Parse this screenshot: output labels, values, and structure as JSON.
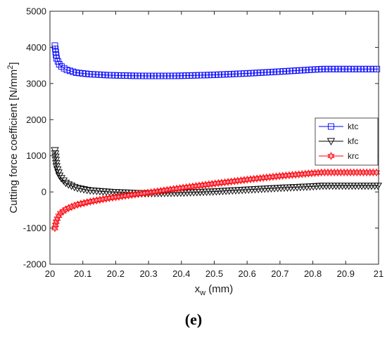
{
  "chart_data": {
    "type": "line",
    "title": "",
    "xlabel": "x",
    "xlabel_sub": "w",
    "xlabel_unit": " (mm)",
    "ylabel": "Cutting force coefficient [N/mm",
    "ylabel_sup": "2",
    "ylabel_close": "]",
    "xlim": [
      20,
      21
    ],
    "ylim": [
      -2000,
      5000
    ],
    "xticks": [
      20,
      20.1,
      20.2,
      20.3,
      20.4,
      20.5,
      20.6,
      20.7,
      20.8,
      20.9,
      21
    ],
    "xtick_labels": [
      "20",
      "20.1",
      "20.2",
      "20.3",
      "20.4",
      "20.5",
      "20.6",
      "20.7",
      "20.8",
      "20.9",
      "21"
    ],
    "yticks": [
      -2000,
      -1000,
      0,
      1000,
      2000,
      3000,
      4000,
      5000
    ],
    "ytick_labels": [
      "-2000",
      "-1000",
      "0",
      "1000",
      "2000",
      "3000",
      "4000",
      "5000"
    ],
    "grid": false,
    "legend_position": "right",
    "series": [
      {
        "name": "ktc",
        "color": "#0000ff",
        "marker": "square",
        "x": [
          20.015,
          20.02,
          20.03,
          20.05,
          20.08,
          20.12,
          20.18,
          20.25,
          20.3,
          20.35,
          20.4,
          20.5,
          20.6,
          20.7,
          20.8,
          20.83,
          20.9,
          21.0
        ],
        "y": [
          4050,
          3700,
          3500,
          3380,
          3300,
          3260,
          3230,
          3215,
          3210,
          3210,
          3215,
          3240,
          3280,
          3330,
          3385,
          3400,
          3400,
          3400
        ]
      },
      {
        "name": "kfc",
        "color": "#000000",
        "marker": "triangle-down",
        "x": [
          20.015,
          20.02,
          20.03,
          20.05,
          20.08,
          20.12,
          20.18,
          20.25,
          20.3,
          20.4,
          20.5,
          20.6,
          20.7,
          20.8,
          20.83,
          20.9,
          21.0
        ],
        "y": [
          1150,
          700,
          420,
          230,
          110,
          40,
          0,
          -30,
          -40,
          -25,
          10,
          60,
          110,
          150,
          170,
          170,
          170
        ]
      },
      {
        "name": "krc",
        "color": "#ff0000",
        "marker": "hexagram",
        "x": [
          20.015,
          20.02,
          20.03,
          20.05,
          20.08,
          20.12,
          20.18,
          20.25,
          20.3,
          20.4,
          20.5,
          20.6,
          20.7,
          20.8,
          20.83,
          20.9,
          21.0
        ],
        "y": [
          -1000,
          -780,
          -600,
          -470,
          -360,
          -270,
          -170,
          -80,
          -20,
          110,
          230,
          340,
          440,
          520,
          540,
          540,
          540
        ]
      }
    ]
  },
  "panel_label": "(e)"
}
